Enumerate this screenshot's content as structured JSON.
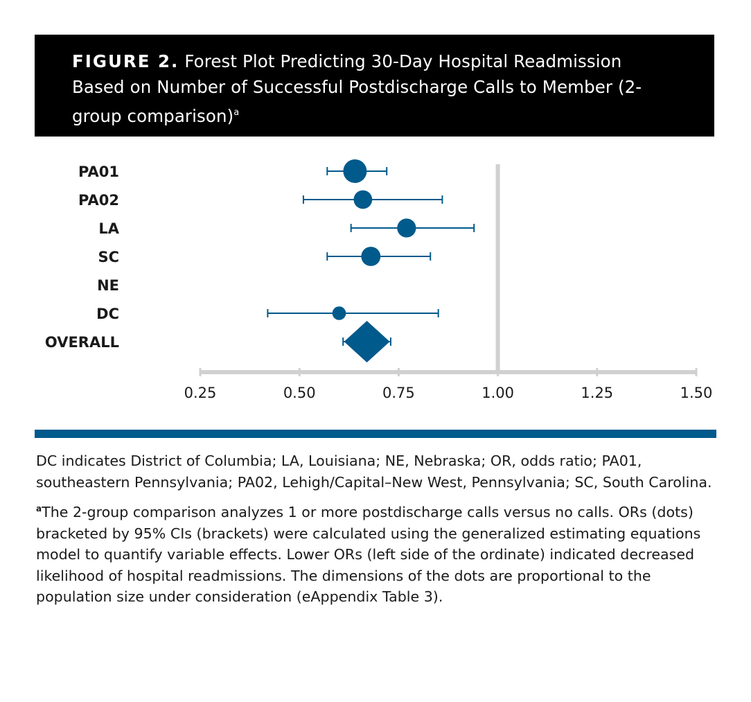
{
  "header": {
    "figure_label": "FIGURE 2.",
    "title": "Forest Plot Predicting 30-Day Hospital Readmission Based on Number of Successful Postdischarge Calls to Member (2-group comparison)",
    "title_superscript": "a"
  },
  "colors": {
    "accent": "#005a8c",
    "axis": "#d0d0d0",
    "header_bg": "#000000"
  },
  "chart_data": {
    "type": "forest",
    "title": "Forest Plot Predicting 30-Day Hospital Readmission Based on Number of Successful Postdischarge Calls to Member (2-group comparison)",
    "xlabel": "",
    "ylabel": "",
    "xlim": [
      0.25,
      1.5
    ],
    "xticks": [
      0.25,
      0.5,
      0.75,
      1.0,
      1.25,
      1.5
    ],
    "xtick_labels": [
      "0.25",
      "0.50",
      "0.75",
      "1.00",
      "1.25",
      "1.50"
    ],
    "reference_line": 1.0,
    "rows": [
      {
        "label": "PA01",
        "or": 0.64,
        "ci_low": 0.57,
        "ci_high": 0.72,
        "marker": "dot",
        "weight": 1.0
      },
      {
        "label": "PA02",
        "or": 0.66,
        "ci_low": 0.51,
        "ci_high": 0.86,
        "marker": "dot",
        "weight": 0.45
      },
      {
        "label": "LA",
        "or": 0.77,
        "ci_low": 0.63,
        "ci_high": 0.94,
        "marker": "dot",
        "weight": 0.48
      },
      {
        "label": "SC",
        "or": 0.68,
        "ci_low": 0.57,
        "ci_high": 0.83,
        "marker": "dot",
        "weight": 0.52
      },
      {
        "label": "NE",
        "or": null,
        "ci_low": null,
        "ci_high": null,
        "marker": "none",
        "weight": 0
      },
      {
        "label": "DC",
        "or": 0.6,
        "ci_low": 0.42,
        "ci_high": 0.85,
        "marker": "dot",
        "weight": 0.12
      },
      {
        "label": "OVERALL",
        "or": 0.67,
        "ci_low": 0.61,
        "ci_high": 0.73,
        "marker": "diamond",
        "weight": 1.0
      }
    ]
  },
  "notes": {
    "abbreviations": "DC indicates District of Columbia; LA, Louisiana; NE, Nebraska; OR, odds ratio; PA01, southeastern Pennsylvania; PA02, Lehigh/Capital–New West, Pennsylvania; SC, South Carolina.",
    "footnote_marker": "a",
    "footnote": "The 2-group comparison analyzes 1 or more postdischarge calls versus no calls. ORs (dots) bracketed by 95% CIs (brackets) were calculated using the generalized estimating equations model to quantify variable effects. Lower ORs (left side of the ordinate) indicated decreased likelihood of hospital readmissions. The dimensions of the dots are proportional to the population size under consideration (eAppendix Table 3)."
  }
}
